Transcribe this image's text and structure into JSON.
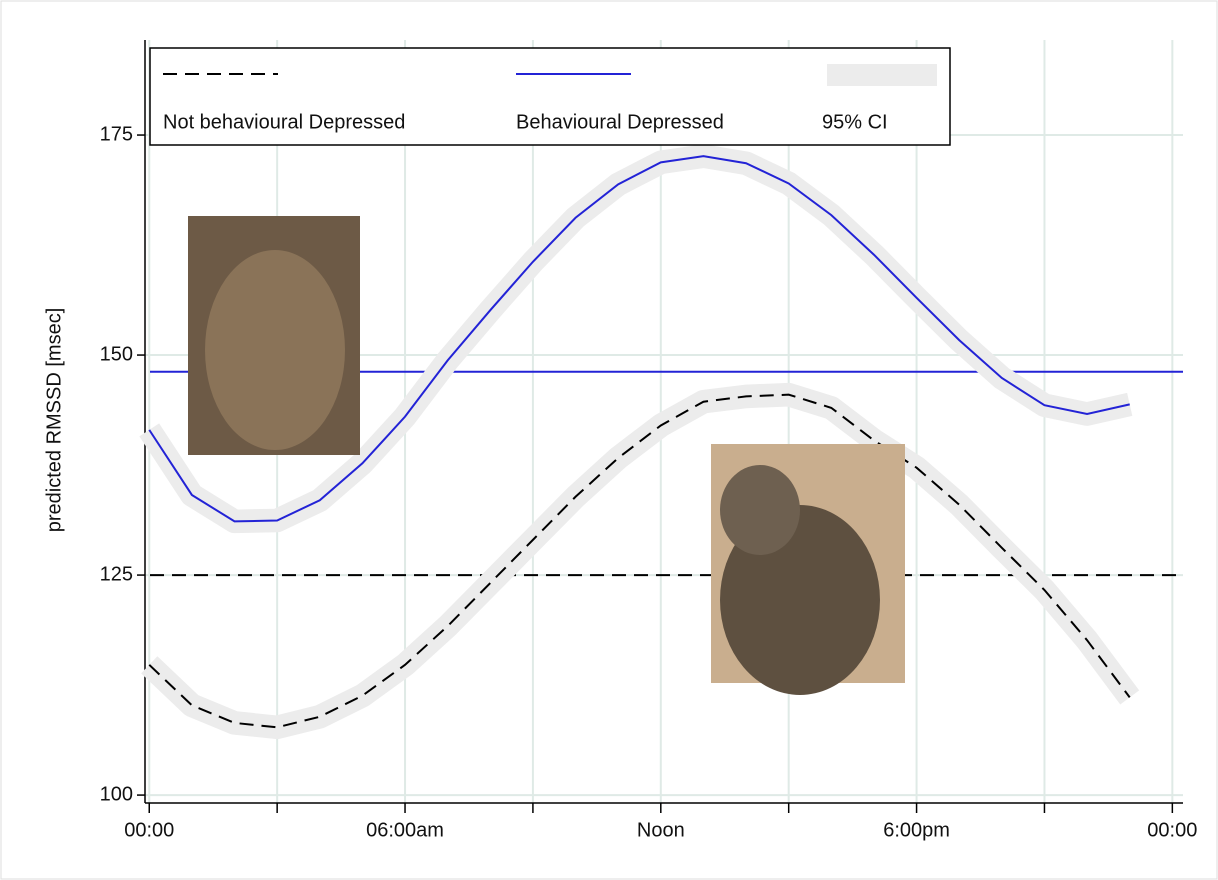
{
  "chart_data": {
    "type": "line",
    "y_label": "predicted RMSSD [msec]",
    "x": [
      0,
      1,
      2,
      3,
      4,
      5,
      6,
      7,
      8,
      9,
      10,
      11,
      12,
      13,
      14,
      15,
      16,
      17,
      18,
      19,
      20,
      21,
      22,
      23
    ],
    "series": [
      {
        "name": "Not behavioural Depressed",
        "color": "#000000",
        "style": "dashed",
        "ci": 1.0,
        "values": [
          114.8,
          110.2,
          108.2,
          107.7,
          108.9,
          111.3,
          114.8,
          119.2,
          124.1,
          129.0,
          133.9,
          138.3,
          142.0,
          144.7,
          145.3,
          145.5,
          144.0,
          140.3,
          137.2,
          133.0,
          128.1,
          123.3,
          117.6,
          111.1
        ]
      },
      {
        "name": "Behavioural Depressed",
        "color": "#2323d6",
        "style": "solid",
        "ci": 1.0,
        "values": [
          141.5,
          134.1,
          131.1,
          131.2,
          133.5,
          137.7,
          143.0,
          149.4,
          155.1,
          160.6,
          165.6,
          169.4,
          171.9,
          172.6,
          171.8,
          169.5,
          165.9,
          161.4,
          156.5,
          151.7,
          147.4,
          144.3,
          143.3,
          144.4
        ]
      }
    ],
    "hlines": [
      {
        "value": 148.1,
        "color": "#2323d6",
        "style": "solid"
      },
      {
        "value": 125,
        "color": "#000000",
        "style": "dashed"
      }
    ],
    "ci_label": "95% CI",
    "ci_color": "#ececec",
    "xlim": [
      -0.1,
      24.25
    ],
    "ylim": [
      99.1,
      185.8
    ],
    "xticks": [
      {
        "value": 0,
        "label": "00:00"
      },
      {
        "value": 6,
        "label": "06:00am"
      },
      {
        "value": 12,
        "label": "Noon"
      },
      {
        "value": 18,
        "label": "6:00pm"
      },
      {
        "value": 24,
        "label": "00:00"
      }
    ],
    "xminor_ticks": [
      3,
      9,
      15,
      21
    ],
    "yticks": [
      100,
      125,
      150,
      175
    ],
    "grid": true
  }
}
